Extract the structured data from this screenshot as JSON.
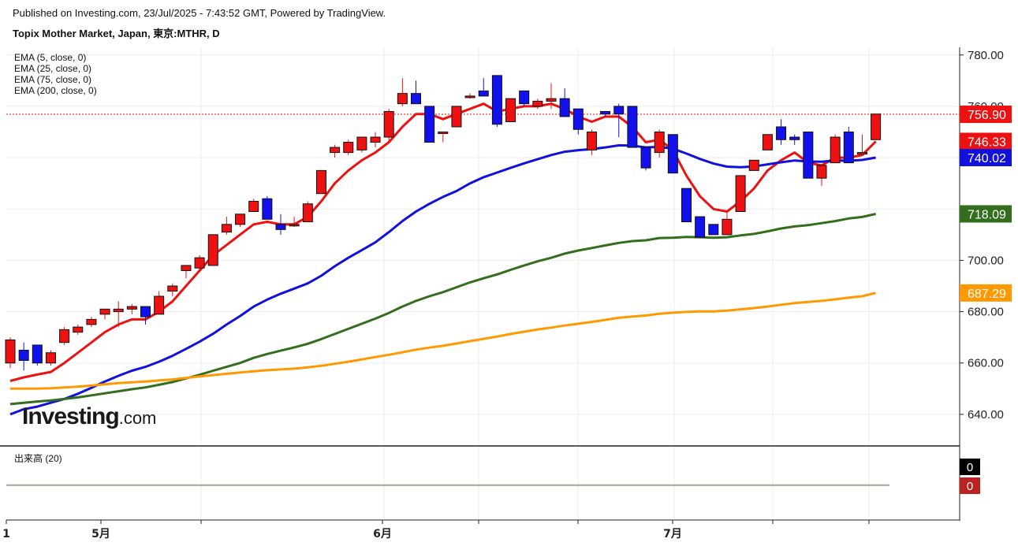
{
  "header": {
    "published": "Published on Investing.com, 23/Jul/2025 - 7:43:52 GMT, Powered by TradingView.",
    "title": "Topix Mother Market, Japan, 東京:MTHR, D"
  },
  "legend": [
    "EMA (5, close, 0)",
    "EMA (25, close, 0)",
    "EMA (75, close, 0)",
    "EMA (200, close, 0)"
  ],
  "volume_label": "出来高 (20)",
  "volume_badges": [
    "0",
    "0"
  ],
  "logo": {
    "main": "Investing",
    "suffix": ".com"
  },
  "colors": {
    "up": "#ee1111",
    "down": "#1111ee",
    "ema5": "#ee1111",
    "ema25": "#1111dd",
    "ema75": "#336e1c",
    "ema200": "#ff9900",
    "price_line": "#ee1111"
  },
  "chart_data": {
    "type": "candlestick",
    "ylim": [
      628,
      783
    ],
    "yticks": [
      "780.00",
      "760.00",
      "740.00",
      "720.00",
      "700.00",
      "680.00",
      "660.00",
      "640.00"
    ],
    "ytick_values": [
      780,
      760,
      740,
      720,
      700,
      680,
      660,
      640
    ],
    "xlabels": [
      {
        "label": "1",
        "index": 0
      },
      {
        "label": "5月",
        "index": 7
      },
      {
        "label": "6月",
        "index": 27
      },
      {
        "label": "7月",
        "index": 48
      }
    ],
    "candles": [
      [
        660,
        670,
        658,
        669
      ],
      [
        665,
        668,
        657,
        661
      ],
      [
        667,
        667,
        659,
        660
      ],
      [
        660,
        665,
        659,
        664
      ],
      [
        668,
        674,
        667,
        673
      ],
      [
        672,
        675,
        671,
        674
      ],
      [
        675,
        678,
        674,
        677
      ],
      [
        679,
        681,
        677,
        681
      ],
      [
        680,
        684,
        674,
        681
      ],
      [
        681,
        683,
        679,
        682
      ],
      [
        682,
        682,
        675,
        678
      ],
      [
        679,
        688,
        679,
        686
      ],
      [
        688,
        691,
        686,
        690
      ],
      [
        696,
        698,
        693,
        698
      ],
      [
        697,
        702,
        696,
        701
      ],
      [
        698,
        710,
        698,
        710
      ],
      [
        711,
        717,
        710,
        714
      ],
      [
        714,
        718,
        713,
        718
      ],
      [
        719,
        724,
        719,
        723
      ],
      [
        724,
        725,
        716,
        716
      ],
      [
        714,
        718,
        710,
        712
      ],
      [
        714,
        717,
        713,
        714
      ],
      [
        715,
        723,
        715,
        722
      ],
      [
        726,
        735,
        726,
        735
      ],
      [
        742,
        745,
        740,
        744
      ],
      [
        742,
        747,
        741,
        746
      ],
      [
        743,
        748,
        742,
        748
      ],
      [
        746,
        750,
        744,
        748
      ],
      [
        748,
        759,
        746,
        758
      ],
      [
        761,
        771,
        760,
        765
      ],
      [
        765,
        770,
        761,
        761
      ],
      [
        760,
        760,
        746,
        746
      ],
      [
        750,
        750,
        746,
        750
      ],
      [
        752,
        760,
        752,
        760
      ],
      [
        764,
        765,
        763,
        764
      ],
      [
        766,
        771,
        764,
        764
      ],
      [
        772,
        772,
        752,
        753
      ],
      [
        754,
        763,
        754,
        763
      ],
      [
        766,
        766,
        760,
        761
      ],
      [
        760,
        763,
        759,
        762
      ],
      [
        762,
        769,
        759,
        763
      ],
      [
        763,
        767,
        756,
        756
      ],
      [
        759,
        759,
        749,
        751
      ],
      [
        743,
        751,
        741,
        750
      ],
      [
        758,
        758,
        756,
        757
      ],
      [
        760,
        761,
        748,
        757
      ],
      [
        760,
        760,
        744,
        744
      ],
      [
        744,
        744,
        735,
        736
      ],
      [
        742,
        751,
        740,
        750
      ],
      [
        749,
        749,
        734,
        734
      ],
      [
        728,
        728,
        715,
        715
      ],
      [
        717,
        717,
        709,
        709
      ],
      [
        714,
        714,
        710,
        710
      ],
      [
        710,
        719,
        710,
        716
      ],
      [
        719,
        733,
        719,
        733
      ],
      [
        735,
        739,
        735,
        739
      ],
      [
        743,
        749,
        743,
        749
      ],
      [
        752,
        755,
        745,
        747
      ],
      [
        748,
        749,
        745,
        747
      ],
      [
        750,
        750,
        732,
        732
      ],
      [
        732,
        737,
        729,
        737
      ],
      [
        738,
        749,
        738,
        748
      ],
      [
        750,
        752,
        738,
        738
      ],
      [
        742,
        749,
        741,
        742
      ],
      [
        747,
        757,
        747,
        757
      ]
    ],
    "ema_series": [
      {
        "name": "EMA (5, close, 0)",
        "color_key": "ema5",
        "values": [
          653,
          654.4,
          655.5,
          656.5,
          660,
          664,
          668,
          672,
          675,
          677,
          677,
          680,
          684,
          690,
          696,
          702,
          706,
          710,
          714,
          715,
          714,
          714,
          717,
          723,
          730,
          735,
          739,
          742,
          746,
          752,
          757,
          757,
          755,
          757,
          759,
          761,
          758,
          759,
          760,
          760,
          761,
          759,
          756,
          754,
          756,
          756,
          752,
          746,
          747,
          743,
          733,
          725,
          720,
          719,
          723,
          728,
          735,
          739,
          742,
          738,
          737,
          740,
          740,
          741,
          746.33
        ]
      },
      {
        "name": "EMA (25, close, 0)",
        "color_key": "ema25",
        "values": [
          640,
          642,
          643,
          644.5,
          646,
          648,
          650.3,
          652.8,
          655,
          657,
          658.5,
          660.5,
          662.8,
          665.5,
          668.3,
          671.4,
          675,
          678.3,
          682,
          684.7,
          687,
          689,
          691,
          694,
          697.7,
          701,
          704,
          707,
          711,
          715.3,
          719,
          722,
          724.7,
          727,
          730,
          732.4,
          734.2,
          736,
          737.8,
          739.4,
          741,
          742.3,
          742.9,
          743.3,
          744,
          744.8,
          744.7,
          744,
          744.2,
          743.5,
          741.6,
          739.5,
          737.7,
          736.5,
          736.3,
          736.6,
          737.4,
          738.2,
          738.9,
          738.5,
          738.4,
          738.9,
          738.8,
          739.1,
          740.02
        ]
      },
      {
        "name": "EMA (75, close, 0)",
        "color_key": "ema75",
        "values": [
          644,
          644.5,
          645,
          645.4,
          646,
          646.6,
          647.4,
          648.2,
          649,
          649.8,
          650.5,
          651.5,
          652.6,
          654,
          655.4,
          657,
          658.5,
          660,
          662,
          663.5,
          664.8,
          666.1,
          667.5,
          669.3,
          671.3,
          673.3,
          675.3,
          677.3,
          679.5,
          682,
          684.2,
          686,
          687.6,
          689.5,
          691.4,
          693,
          694.5,
          696.3,
          698,
          699.6,
          701,
          702.6,
          703.8,
          704.8,
          705.8,
          706.8,
          707.5,
          707.8,
          708.7,
          708.8,
          709.1,
          709,
          708.8,
          709,
          709.7,
          710.3,
          711.3,
          712.4,
          713.2,
          713.7,
          714.5,
          715.3,
          716.3,
          716.9,
          718.09
        ]
      },
      {
        "name": "EMA (200, close, 0)",
        "color_key": "ema200",
        "values": [
          650,
          650,
          650,
          650.2,
          650.5,
          650.8,
          651.2,
          651.7,
          652.2,
          652.5,
          652.8,
          653.2,
          653.6,
          654.2,
          654.8,
          655.3,
          655.8,
          656.3,
          656.8,
          657.2,
          657.5,
          657.8,
          658.3,
          658.9,
          659.7,
          660.5,
          661.4,
          662.3,
          663.2,
          664.2,
          665.2,
          666.0,
          666.7,
          667.6,
          668.5,
          669.4,
          670.3,
          671.3,
          672.2,
          673.1,
          673.8,
          674.6,
          675.3,
          676,
          676.8,
          677.6,
          678.1,
          678.5,
          679.2,
          679.6,
          679.9,
          680.1,
          680.1,
          680.4,
          680.9,
          681.4,
          682,
          682.7,
          683.3,
          683.8,
          684.2,
          684.8,
          685.5,
          686,
          687.29
        ]
      }
    ],
    "price_labels": [
      {
        "text": "756.90",
        "value": 756.9,
        "bg_key": "ema5"
      },
      {
        "text": "746.33",
        "value": 746.33,
        "bg_key": "ema5"
      },
      {
        "text": "740.02",
        "value": 740.02,
        "bg_key": "ema25"
      },
      {
        "text": "718.09",
        "value": 718.09,
        "bg_key": "ema75"
      },
      {
        "text": "687.29",
        "value": 687.29,
        "bg_key": "ema200"
      }
    ],
    "current_price": 756.9
  }
}
